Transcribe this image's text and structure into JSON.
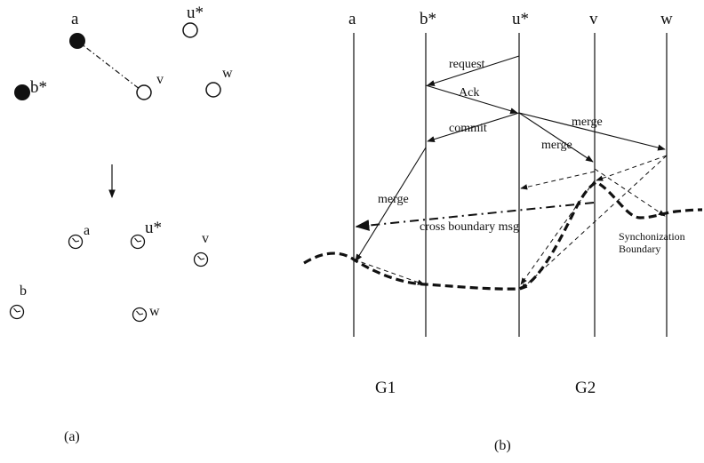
{
  "panel_a": {
    "caption": "(a)",
    "top_nodes": {
      "a": "a",
      "b": "b*",
      "u": "u*",
      "v": "v",
      "w": "w"
    },
    "bottom_nodes": {
      "a": "a",
      "u": "u*",
      "v": "v",
      "b": "b",
      "w": "w"
    }
  },
  "panel_b": {
    "caption": "(b)",
    "process_labels": [
      "a",
      "b*",
      "u*",
      "v",
      "w"
    ],
    "messages": {
      "request": "request",
      "ack": "Ack",
      "commit": "commit",
      "merge_uw": "merge",
      "merge_uv": "merge",
      "merge_ba": "merge",
      "cross": "cross boundary msg"
    },
    "boundary_label_1": "Synchonization",
    "boundary_label_2": "Boundary",
    "group_1": "G1",
    "group_2": "G2"
  }
}
